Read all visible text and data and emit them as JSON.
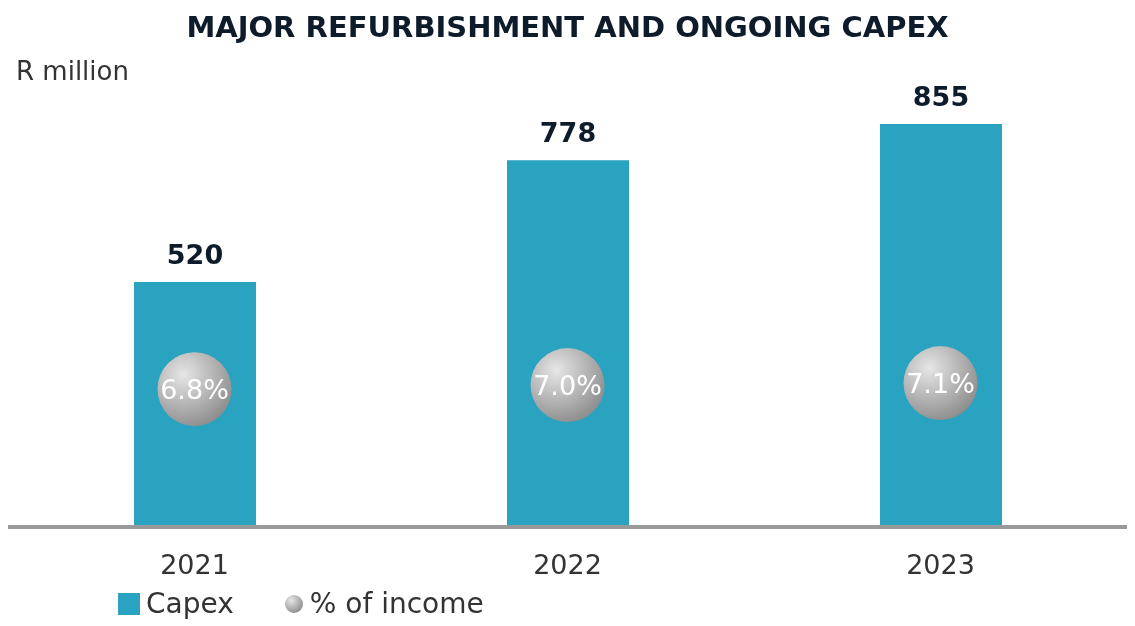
{
  "chart_data": {
    "type": "bar",
    "title": "MAJOR REFURBISHMENT AND ONGOING CAPEX",
    "ylabel": "R million",
    "categories": [
      "2021",
      "2022",
      "2023"
    ],
    "series": [
      {
        "name": "Capex",
        "color": "#2aa3c0",
        "values": [
          520,
          778,
          855
        ],
        "value_labels": [
          "520",
          "778",
          "855"
        ]
      },
      {
        "name": "% of income",
        "type": "scatter",
        "axis": "y2",
        "color": "#8c8c8c",
        "values": [
          6.8,
          7.0,
          7.1
        ],
        "value_labels": [
          "6.8%",
          "7.0%",
          "7.1%"
        ]
      }
    ],
    "legend": "bottom left",
    "tick_labels": "x",
    "grid": false
  }
}
